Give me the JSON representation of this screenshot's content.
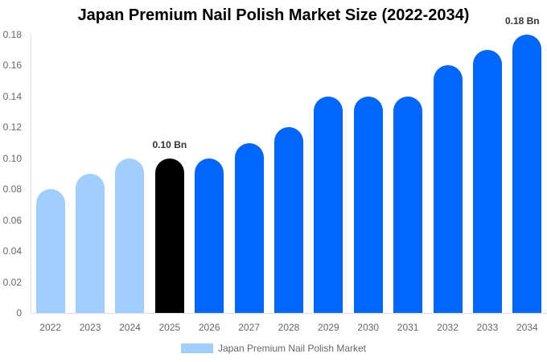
{
  "chart_data": {
    "type": "bar",
    "title": "Japan Premium Nail Polish Market Size (2022-2034)",
    "xlabel": "",
    "ylabel": "",
    "ylim": [
      0,
      0.18
    ],
    "yticks": [
      "0",
      "0.02",
      "0.04",
      "0.06",
      "0.08",
      "0.10",
      "0.12",
      "0.14",
      "0.16",
      "0.18"
    ],
    "categories": [
      "2022",
      "2023",
      "2024",
      "2025",
      "2026",
      "2027",
      "2028",
      "2029",
      "2030",
      "2031",
      "2032",
      "2033",
      "2034"
    ],
    "series": [
      {
        "name": "Japan Premium Nail Polish Market",
        "values": [
          0.08,
          0.09,
          0.1,
          0.1,
          0.1,
          0.11,
          0.12,
          0.14,
          0.14,
          0.14,
          0.16,
          0.17,
          0.18
        ]
      }
    ],
    "bar_colors": [
      "#a0cfff",
      "#a0cfff",
      "#a0cfff",
      "#000000",
      "#0066ff",
      "#0066ff",
      "#0066ff",
      "#0066ff",
      "#0066ff",
      "#0066ff",
      "#0066ff",
      "#0066ff",
      "#0066ff"
    ],
    "annotations": [
      {
        "category": "2025",
        "text": "0.10 Bn"
      },
      {
        "category": "2034",
        "text": "0.18 Bn"
      }
    ],
    "legend": {
      "position": "bottom",
      "entries": [
        "Japan Premium Nail Polish Market"
      ],
      "color": "#a0cfff"
    },
    "grid": false
  }
}
